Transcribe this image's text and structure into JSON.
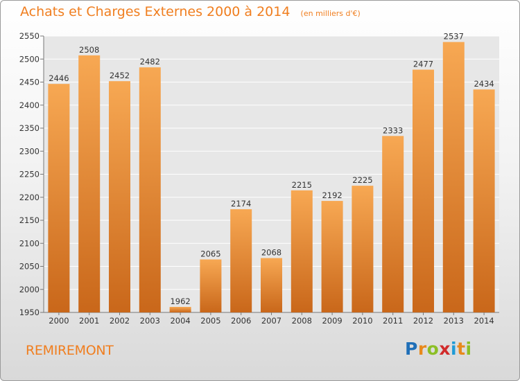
{
  "title": "Achats et Charges Externes 2000 à 2014",
  "subtitle": "(en milliers d'€)",
  "city": "REMIREMONT",
  "logo": {
    "text": "Proxiti",
    "letters": [
      {
        "ch": "P",
        "color": "#1f6fb8"
      },
      {
        "ch": "r",
        "color": "#e8891c"
      },
      {
        "ch": "o",
        "color": "#8cbf26"
      },
      {
        "ch": "x",
        "color": "#d12b2b"
      },
      {
        "ch": "i",
        "color": "#1f9bd6"
      },
      {
        "ch": "t",
        "color": "#e8891c"
      },
      {
        "ch": "i",
        "color": "#8cbf26"
      }
    ]
  },
  "colors": {
    "bar_top": "#f7a853",
    "bar_bottom": "#c9671a",
    "accent": "#f07e1f"
  },
  "chart_data": {
    "type": "bar",
    "categories": [
      "2000",
      "2001",
      "2002",
      "2003",
      "2004",
      "2005",
      "2006",
      "2007",
      "2008",
      "2009",
      "2010",
      "2011",
      "2012",
      "2013",
      "2014"
    ],
    "values": [
      2446,
      2508,
      2452,
      2482,
      1962,
      2065,
      2174,
      2068,
      2215,
      2192,
      2225,
      2333,
      2477,
      2537,
      2434
    ],
    "ylim": [
      1950,
      2550
    ],
    "yticks": [
      1950,
      2000,
      2050,
      2100,
      2150,
      2200,
      2250,
      2300,
      2350,
      2400,
      2450,
      2500,
      2550
    ],
    "grid": true,
    "data_labels": true
  }
}
